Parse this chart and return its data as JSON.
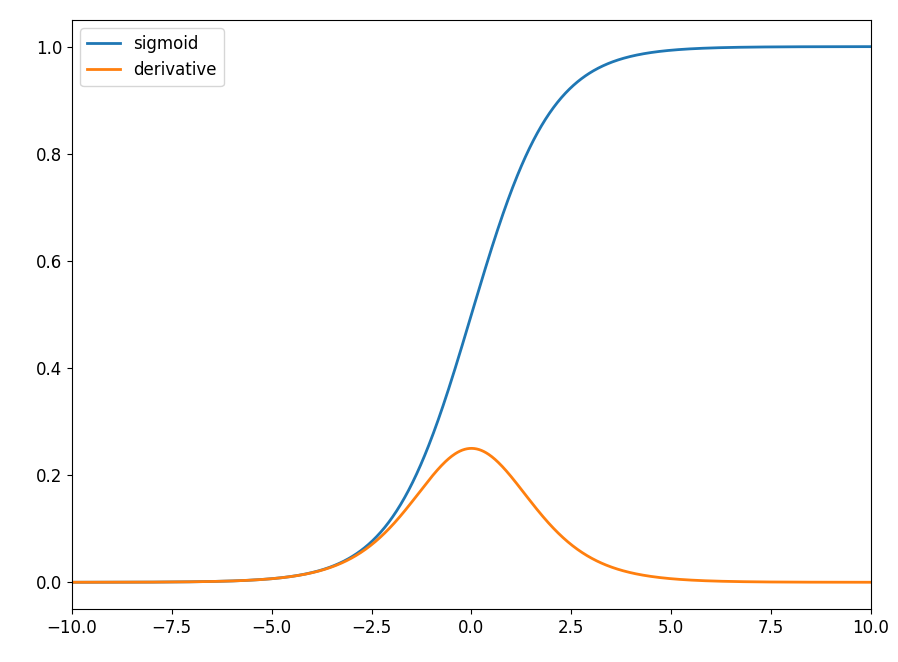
{
  "x_min": -10.0,
  "x_max": 10.0,
  "x_ticks": [
    -10.0,
    -7.5,
    -5.0,
    -2.5,
    0.0,
    2.5,
    5.0,
    7.5,
    10.0
  ],
  "y_ticks": [
    0.0,
    0.2,
    0.4,
    0.6,
    0.8,
    1.0
  ],
  "y_min": -0.02,
  "y_max": 1.05,
  "sigmoid_label": "sigmoid",
  "derivative_label": "derivative",
  "sigmoid_color": "#1f77b4",
  "derivative_color": "#ff7f0e",
  "line_width": 2.0,
  "legend_loc": "upper left",
  "figsize": [
    8.98,
    6.62
  ],
  "dpi": 100,
  "bg_color": "#ffffff",
  "spine_color": "#000000",
  "tick_label_size": 12
}
